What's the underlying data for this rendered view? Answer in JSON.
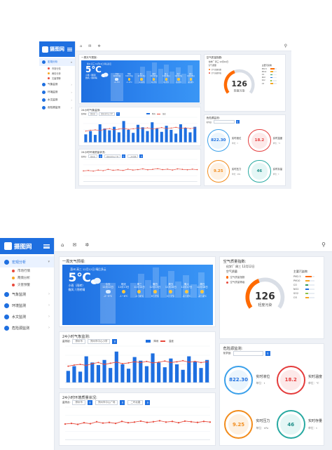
{
  "app": {
    "logo_text": "摄图网"
  },
  "sidebar": {
    "groups": [
      {
        "label": "宏观分析",
        "active": true,
        "subs": [
          {
            "label": "市场行情",
            "color": "#e84a3c"
          },
          {
            "label": "两情分析",
            "color": "#f5a623"
          },
          {
            "label": "灾害预警",
            "color": "#e84a3c"
          }
        ]
      },
      {
        "label": "气象监测",
        "active": false,
        "subs": []
      },
      {
        "label": "环境监测",
        "active": false,
        "subs": []
      },
      {
        "label": "水文监测",
        "active": false,
        "subs": []
      },
      {
        "label": "危险源监测",
        "active": false,
        "subs": []
      }
    ]
  },
  "weather": {
    "title": "一周天气预报:",
    "location": "惠州 高三 12月12日 晴后多云",
    "temp": "5℃",
    "desc": "小雨（雨转）",
    "desc2": "微风 / 阴转晴",
    "forecast": [
      {
        "day": "今天",
        "date": "12月12日",
        "temp": "-2~5℃",
        "icon": "cloud"
      },
      {
        "day": "明天",
        "date": "12月13日",
        "temp": "-1~6℃",
        "icon": "sun"
      },
      {
        "day": "周三",
        "date": "12月14日",
        "temp": "-1~6℃",
        "icon": "sun"
      },
      {
        "day": "周四",
        "date": "12月15日",
        "temp": "0~7℃",
        "icon": "sun"
      },
      {
        "day": "周五",
        "date": "12月16日",
        "temp": "0~7℃",
        "icon": "sun"
      },
      {
        "day": "周六",
        "date": "12月17日",
        "temp": "-1~5℃",
        "icon": "sun"
      },
      {
        "day": "周日",
        "date": "12月18日",
        "temp": "-2~4℃",
        "icon": "sun"
      }
    ]
  },
  "meteo": {
    "title": "24小时气象监测:",
    "filter_label": "监测站:",
    "filter_city": "郑州市",
    "filter_station": "郑州市中心小学",
    "legend_rain": "降雨",
    "legend_temp": "温度"
  },
  "env": {
    "title": "24小时环境质量状况:",
    "filter_label": "监测点:",
    "filter_city": "郑州市",
    "filter_station1": "郑州市中心广场",
    "filter_station2": "二环北路"
  },
  "aqi": {
    "title": "空气质量指数:",
    "location": "化学厂 周三 12月12日",
    "label": "空气质量",
    "value": "126",
    "level": "轻度污染",
    "legend": [
      {
        "label": "空气质量指数",
        "color": "#ff6a00"
      },
      {
        "label": "空气质量等级",
        "color": "#e84a3c"
      }
    ],
    "pollutants_title": "主要污染物",
    "pollutants": [
      {
        "name": "PM2.5",
        "color": "#ff6a00",
        "fraction": 0.7
      },
      {
        "name": "PM10",
        "color": "#f5a623",
        "fraction": 0.5
      },
      {
        "name": "CO",
        "color": "#2e9b5f",
        "fraction": 0.35
      },
      {
        "name": "NO2",
        "color": "#1e6fe0",
        "fraction": 0.4
      },
      {
        "name": "SO2",
        "color": "#8bc34a",
        "fraction": 0.3
      },
      {
        "name": "O3",
        "color": "#f5a623",
        "fraction": 0.45
      }
    ],
    "gauge_fraction": 0.42
  },
  "hazard": {
    "title": "危险源监测:",
    "filter_label": "化学品:",
    "circles": [
      {
        "value": "822.30",
        "label": "实时液位",
        "unit": "单位：t",
        "color": "#3aa0ea",
        "text_color": "#1e6fe0",
        "fill": "#eaf5fd"
      },
      {
        "value": "18.2",
        "label": "实时温度",
        "unit": "单位：℃",
        "color": "#e43b3b",
        "text_color": "#e43b3b",
        "fill": "#fde9e9"
      },
      {
        "value": "9.25",
        "label": "实时压力",
        "unit": "单位：kPa",
        "color": "#f28c1c",
        "text_color": "#f28c1c",
        "fill": "#fef1e2"
      },
      {
        "value": "46",
        "label": "实时存量",
        "unit": "单位：t",
        "color": "#27a9a1",
        "text_color": "#1b8d86",
        "fill": "#e4f6f5"
      }
    ]
  },
  "chart_data": [
    {
      "type": "bar",
      "series": [
        {
          "values": [
            32,
            45,
            30,
            72,
            55,
            48,
            62,
            40,
            85,
            50,
            38,
            70,
            60,
            45,
            80,
            55,
            42,
            66,
            50,
            35,
            72,
            58,
            40,
            62
          ]
        },
        {
          "values": [
            45,
            48,
            50,
            47,
            52,
            55,
            50,
            53,
            56,
            52,
            54,
            57,
            55,
            58,
            54,
            56,
            59,
            55,
            57,
            60,
            56,
            58,
            55,
            57
          ]
        }
      ],
      "ylim": [
        0,
        100
      ]
    },
    {
      "type": "line",
      "series": [
        {
          "values": [
            48,
            50,
            47,
            52,
            49,
            55,
            51,
            53,
            50,
            56,
            52,
            54,
            57,
            53,
            55,
            58,
            54,
            56,
            52,
            57,
            55,
            53,
            56,
            54
          ]
        }
      ],
      "ylim": [
        0,
        100
      ]
    }
  ]
}
